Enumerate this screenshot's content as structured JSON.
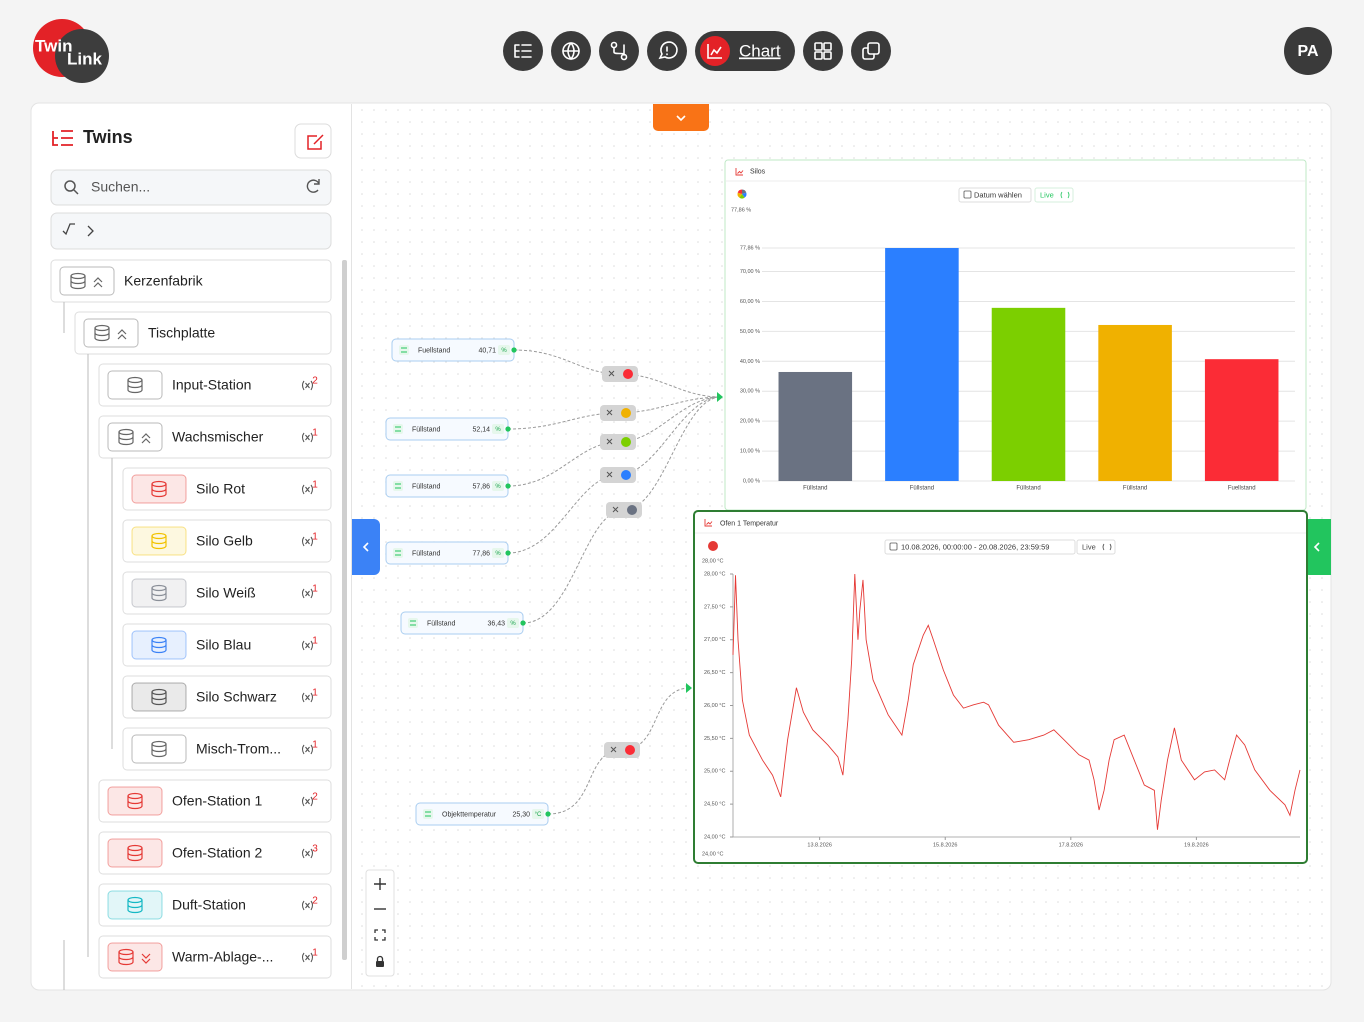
{
  "header": {
    "logo": [
      "Twin",
      "Link"
    ],
    "nav_active": "Chart",
    "avatar": "PA"
  },
  "sidebar": {
    "title": "Twins",
    "search_placeholder": "Suchen...",
    "tree": [
      {
        "label": "Kerzenfabrik",
        "color": "#666666",
        "children": [
          {
            "label": "Tischplatte",
            "color": "#666666",
            "children": [
              {
                "label": "Input-Station",
                "count": 2,
                "color": "#666666"
              },
              {
                "label": "Wachsmischer",
                "count": 1,
                "color": "#666666",
                "children": [
                  {
                    "label": "Silo Rot",
                    "count": 1,
                    "color": "#e53935"
                  },
                  {
                    "label": "Silo Gelb",
                    "count": 1,
                    "color": "#f2c200"
                  },
                  {
                    "label": "Silo Weiß",
                    "count": 1,
                    "color": "#8a8f98"
                  },
                  {
                    "label": "Silo Blau",
                    "count": 1,
                    "color": "#3b82f6"
                  },
                  {
                    "label": "Silo Schwarz",
                    "count": 1,
                    "color": "#555555"
                  },
                  {
                    "label": "Misch-Trom...",
                    "count": 1,
                    "color": "#666666"
                  }
                ]
              },
              {
                "label": "Ofen-Station 1",
                "count": 2,
                "color": "#e53935"
              },
              {
                "label": "Ofen-Station 2",
                "count": 3,
                "color": "#e53935"
              },
              {
                "label": "Duft-Station",
                "count": 2,
                "color": "#14b8c4"
              },
              {
                "label": "Warm-Ablage-...",
                "count": 1,
                "color": "#e53935",
                "collapsed": true
              }
            ]
          }
        ]
      }
    ]
  },
  "nodes": [
    {
      "label": "Fuellstand",
      "value": "40,71",
      "unit": "%",
      "color": "#fb2c36"
    },
    {
      "label": "Füllstand",
      "value": "52,14",
      "unit": "%",
      "color": "#f0b100"
    },
    {
      "label": "Füllstand",
      "value": "57,86",
      "unit": "%",
      "color": "#7ccf00"
    },
    {
      "label": "Füllstand",
      "value": "77,86",
      "unit": "%",
      "color": "#2b7fff"
    },
    {
      "label": "Füllstand",
      "value": "36,43",
      "unit": "%",
      "color": "#6a7282"
    },
    {
      "label": "Objekttemperatur",
      "value": "25,30",
      "unit": "°C",
      "color": "#fb2c36"
    }
  ],
  "chart_data": [
    {
      "type": "bar",
      "title": "Silos",
      "date_button": "Datum wählen",
      "live": "Live",
      "max_label": "77,86 %",
      "categories": [
        "Füllstand",
        "Füllstand",
        "Füllstand",
        "Füllstand",
        "Fuellstand"
      ],
      "values": [
        36.43,
        77.86,
        57.86,
        52.14,
        40.71
      ],
      "colors": [
        "#6a7282",
        "#2b7fff",
        "#7ccf00",
        "#f0b100",
        "#fb2c36"
      ],
      "ylim": [
        0,
        77.86
      ],
      "yticks": [
        {
          "value": 0,
          "label": "0,00 %"
        },
        {
          "value": 10,
          "label": "10,00 %"
        },
        {
          "value": 20,
          "label": "20,00 %"
        },
        {
          "value": 30,
          "label": "30,00 %"
        },
        {
          "value": 40,
          "label": "40,00 %"
        },
        {
          "value": 50,
          "label": "50,00 %"
        },
        {
          "value": 60,
          "label": "60,00 %"
        },
        {
          "value": 70,
          "label": "70,00 %"
        },
        {
          "value": 77.86,
          "label": "77,86 %"
        }
      ],
      "grid": true
    },
    {
      "type": "line",
      "title": "Ofen 1 Temperatur",
      "date_range": "10.08.2026, 00:00:00 - 20.08.2026, 23:59:59",
      "live": "Live",
      "range_labels": [
        "28,00 °C",
        "24,00 °C"
      ],
      "color": "#e53935",
      "x": [
        11.62,
        11.66,
        11.7,
        11.77,
        11.88,
        12.09,
        12.25,
        12.38,
        12.49,
        12.63,
        12.74,
        12.89,
        13.13,
        13.29,
        13.37,
        13.45,
        13.51,
        13.56,
        13.61,
        13.64,
        13.69,
        13.74,
        13.85,
        14.09,
        14.31,
        14.41,
        14.49,
        14.65,
        14.73,
        14.81,
        14.97,
        15.13,
        15.29,
        15.45,
        15.61,
        15.69,
        15.85,
        16.09,
        16.33,
        16.57,
        16.73,
        16.89,
        17.13,
        17.29,
        17.37,
        17.45,
        17.53,
        17.61,
        17.69,
        17.85,
        18.01,
        18.17,
        18.33,
        18.38,
        18.44,
        18.54,
        18.65,
        18.76,
        18.97,
        19.13,
        19.29,
        19.45,
        19.53,
        19.64,
        19.77,
        19.93,
        20.17,
        20.41,
        20.49,
        20.57,
        20.65
      ],
      "values": [
        26.77,
        27.98,
        27.0,
        26.08,
        25.55,
        25.17,
        24.94,
        24.61,
        25.48,
        26.27,
        25.9,
        25.63,
        25.4,
        25.22,
        24.94,
        25.78,
        26.69,
        28.0,
        27.0,
        27.45,
        27.91,
        27.0,
        26.39,
        25.86,
        25.55,
        26.08,
        26.62,
        27.07,
        27.22,
        27.0,
        26.54,
        26.16,
        25.96,
        26.01,
        26.05,
        26.01,
        25.7,
        25.44,
        25.48,
        25.55,
        25.63,
        25.48,
        25.25,
        25.17,
        24.87,
        24.41,
        24.71,
        25.17,
        25.48,
        25.55,
        25.17,
        24.79,
        24.71,
        24.11,
        24.56,
        25.17,
        25.66,
        25.17,
        24.87,
        24.99,
        25.02,
        24.87,
        25.17,
        25.55,
        25.4,
        25.02,
        24.71,
        24.49,
        24.33,
        24.71,
        25.02
      ],
      "xlim": [
        11.62,
        20.65
      ],
      "xticks": [
        {
          "value": 13,
          "label": "13.8.2026"
        },
        {
          "value": 15,
          "label": "15.8.2026"
        },
        {
          "value": 17,
          "label": "17.8.2026"
        },
        {
          "value": 19,
          "label": "19.8.2026"
        }
      ],
      "ylim": [
        24,
        28
      ],
      "yticks": [
        {
          "value": 24,
          "label": "24,00 °C"
        },
        {
          "value": 24.5,
          "label": "24,50 °C"
        },
        {
          "value": 25,
          "label": "25,00 °C"
        },
        {
          "value": 25.5,
          "label": "25,50 °C"
        },
        {
          "value": 26,
          "label": "26,00 °C"
        },
        {
          "value": 26.5,
          "label": "26,50 °C"
        },
        {
          "value": 27,
          "label": "27,00 °C"
        },
        {
          "value": 27.5,
          "label": "27,50 °C"
        },
        {
          "value": 28,
          "label": "28,00 °C"
        }
      ],
      "grid": false
    }
  ]
}
